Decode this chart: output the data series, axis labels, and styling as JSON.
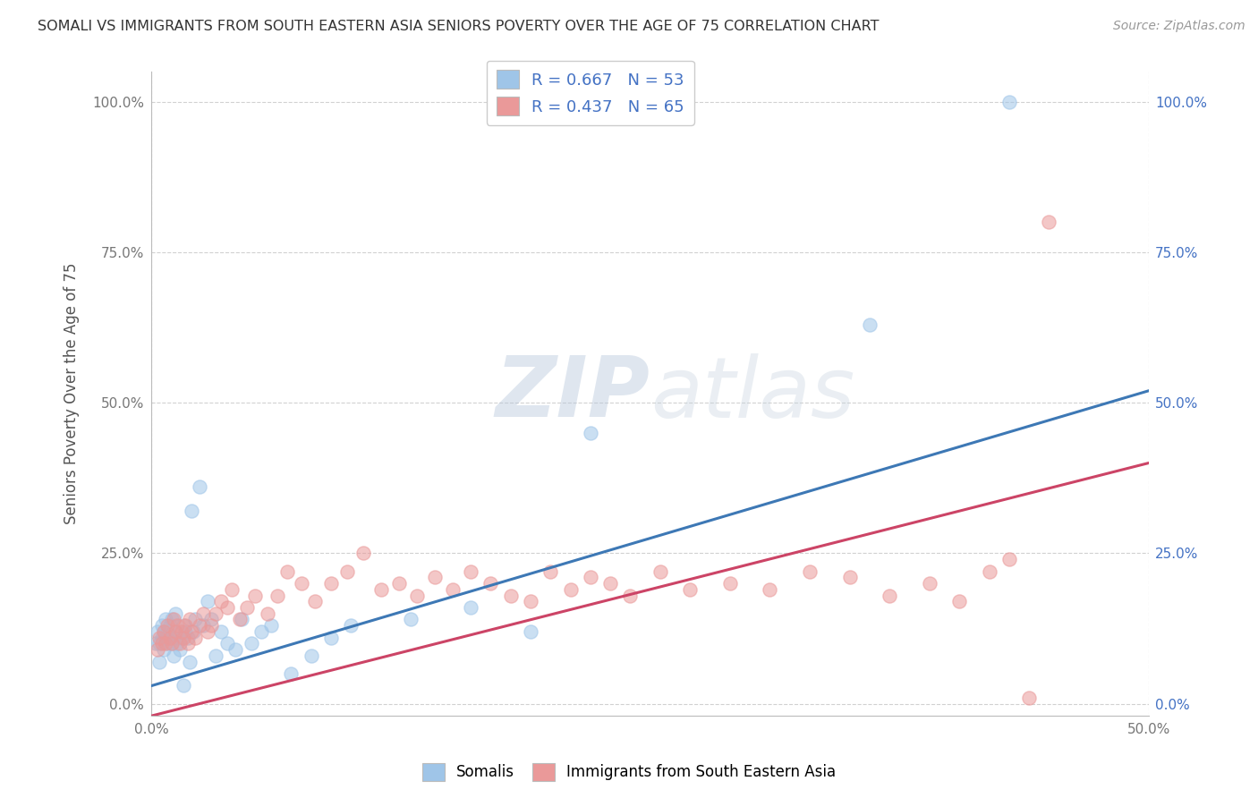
{
  "title": "SOMALI VS IMMIGRANTS FROM SOUTH EASTERN ASIA SENIORS POVERTY OVER THE AGE OF 75 CORRELATION CHART",
  "source": "Source: ZipAtlas.com",
  "ylabel": "Seniors Poverty Over the Age of 75",
  "xlim": [
    0.0,
    0.5
  ],
  "ylim": [
    -0.02,
    1.05
  ],
  "yticks": [
    0.0,
    0.25,
    0.5,
    0.75,
    1.0
  ],
  "ytick_labels_left": [
    "0.0%",
    "25.0%",
    "50.0%",
    "75.0%",
    "100.0%"
  ],
  "ytick_labels_right": [
    "0.0%",
    "25.0%",
    "50.0%",
    "75.0%",
    "100.0%"
  ],
  "xtick_vals": [
    0.0,
    0.5
  ],
  "xtick_labels": [
    "0.0%",
    "50.0%"
  ],
  "somali_R": 0.667,
  "somali_N": 53,
  "sea_R": 0.437,
  "sea_N": 65,
  "somali_color": "#9fc5e8",
  "sea_color": "#ea9999",
  "somali_line_color": "#3d78b5",
  "sea_line_color": "#cc4466",
  "background_color": "#ffffff",
  "watermark_zip": "ZIP",
  "watermark_atlas": "atlas",
  "somali_x": [
    0.002,
    0.003,
    0.004,
    0.004,
    0.005,
    0.005,
    0.006,
    0.006,
    0.007,
    0.007,
    0.008,
    0.008,
    0.009,
    0.009,
    0.01,
    0.01,
    0.011,
    0.011,
    0.012,
    0.012,
    0.013,
    0.014,
    0.015,
    0.016,
    0.016,
    0.017,
    0.018,
    0.019,
    0.02,
    0.021,
    0.022,
    0.024,
    0.026,
    0.028,
    0.03,
    0.032,
    0.035,
    0.038,
    0.042,
    0.045,
    0.05,
    0.055,
    0.06,
    0.07,
    0.08,
    0.09,
    0.1,
    0.13,
    0.16,
    0.19,
    0.22,
    0.36,
    0.43
  ],
  "somali_y": [
    0.1,
    0.12,
    0.1,
    0.07,
    0.11,
    0.13,
    0.09,
    0.12,
    0.11,
    0.14,
    0.1,
    0.12,
    0.11,
    0.13,
    0.1,
    0.14,
    0.11,
    0.08,
    0.12,
    0.15,
    0.1,
    0.09,
    0.11,
    0.13,
    0.03,
    0.12,
    0.11,
    0.07,
    0.32,
    0.12,
    0.14,
    0.36,
    0.13,
    0.17,
    0.14,
    0.08,
    0.12,
    0.1,
    0.09,
    0.14,
    0.1,
    0.12,
    0.13,
    0.05,
    0.08,
    0.11,
    0.13,
    0.14,
    0.16,
    0.12,
    0.45,
    0.63,
    1.0
  ],
  "sea_x": [
    0.003,
    0.004,
    0.005,
    0.006,
    0.007,
    0.008,
    0.009,
    0.01,
    0.011,
    0.012,
    0.013,
    0.014,
    0.015,
    0.016,
    0.017,
    0.018,
    0.019,
    0.02,
    0.022,
    0.024,
    0.026,
    0.028,
    0.03,
    0.032,
    0.035,
    0.038,
    0.04,
    0.044,
    0.048,
    0.052,
    0.058,
    0.063,
    0.068,
    0.075,
    0.082,
    0.09,
    0.098,
    0.106,
    0.115,
    0.124,
    0.133,
    0.142,
    0.151,
    0.16,
    0.17,
    0.18,
    0.19,
    0.2,
    0.21,
    0.22,
    0.23,
    0.24,
    0.255,
    0.27,
    0.29,
    0.31,
    0.33,
    0.35,
    0.37,
    0.39,
    0.405,
    0.42,
    0.43,
    0.44,
    0.45
  ],
  "sea_y": [
    0.09,
    0.11,
    0.1,
    0.12,
    0.1,
    0.13,
    0.11,
    0.1,
    0.14,
    0.12,
    0.13,
    0.1,
    0.12,
    0.11,
    0.13,
    0.1,
    0.14,
    0.12,
    0.11,
    0.13,
    0.15,
    0.12,
    0.13,
    0.15,
    0.17,
    0.16,
    0.19,
    0.14,
    0.16,
    0.18,
    0.15,
    0.18,
    0.22,
    0.2,
    0.17,
    0.2,
    0.22,
    0.25,
    0.19,
    0.2,
    0.18,
    0.21,
    0.19,
    0.22,
    0.2,
    0.18,
    0.17,
    0.22,
    0.19,
    0.21,
    0.2,
    0.18,
    0.22,
    0.19,
    0.2,
    0.19,
    0.22,
    0.21,
    0.18,
    0.2,
    0.17,
    0.22,
    0.24,
    0.01,
    0.8
  ]
}
